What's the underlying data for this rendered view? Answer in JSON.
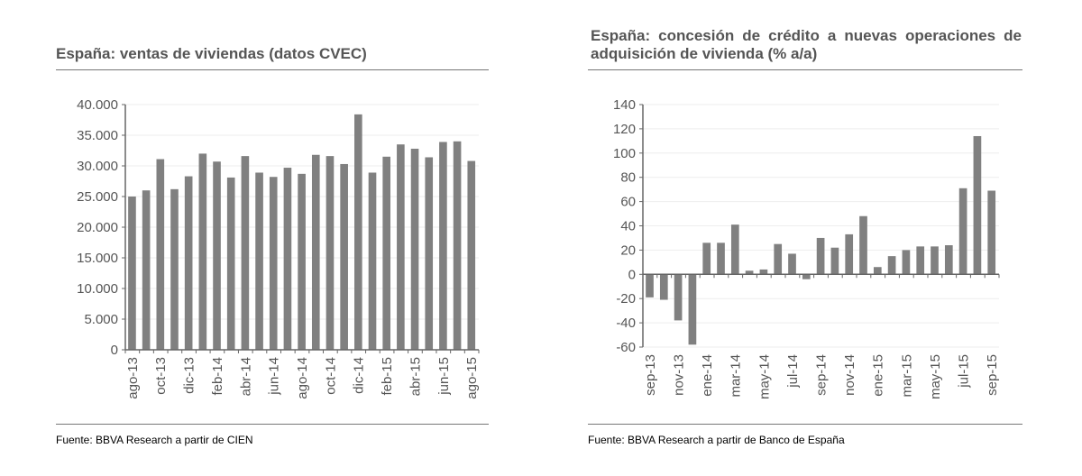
{
  "chart_data": [
    {
      "type": "bar",
      "title": "España: ventas de viviendas (datos CVEC)",
      "source": "Fuente: BBVA Research a partir de CIEN",
      "categories": [
        "ago-13",
        "sep-13",
        "oct-13",
        "nov-13",
        "dic-13",
        "ene-14",
        "feb-14",
        "mar-14",
        "abr-14",
        "may-14",
        "jun-14",
        "jul-14",
        "ago-14",
        "sep-14",
        "oct-14",
        "nov-14",
        "dic-14",
        "ene-15",
        "feb-15",
        "mar-15",
        "abr-15",
        "may-15",
        "jun-15",
        "jul-15",
        "ago-15"
      ],
      "tick_labels": [
        "ago-13",
        "oct-13",
        "dic-13",
        "feb-14",
        "abr-14",
        "jun-14",
        "ago-14",
        "oct-14",
        "dic-14",
        "feb-15",
        "abr-15",
        "jun-15",
        "ago-15"
      ],
      "values": [
        25000,
        26000,
        31100,
        26200,
        28300,
        32000,
        30700,
        28100,
        31600,
        28900,
        28200,
        29700,
        28700,
        31800,
        31600,
        30300,
        38400,
        28900,
        31500,
        33500,
        32800,
        31400,
        33900,
        34000,
        30800
      ],
      "ylim": [
        0,
        40000
      ],
      "yticks": [
        "0",
        "5.000",
        "10.000",
        "15.000",
        "20.000",
        "25.000",
        "30.000",
        "35.000",
        "40.000"
      ],
      "grid": true,
      "color": "#808080"
    },
    {
      "type": "bar",
      "title": "España: concesión de crédito a nuevas operaciones de adquisición de vivienda (% a/a)",
      "source": "Fuente: BBVA Research a partir de Banco de España",
      "categories": [
        "sep-13",
        "oct-13",
        "nov-13",
        "dic-13",
        "ene-14",
        "feb-14",
        "mar-14",
        "abr-14",
        "may-14",
        "jun-14",
        "jul-14",
        "ago-14",
        "sep-14",
        "oct-14",
        "nov-14",
        "dic-14",
        "ene-15",
        "feb-15",
        "mar-15",
        "abr-15",
        "may-15",
        "jun-15",
        "jul-15",
        "ago-15",
        "sep-15"
      ],
      "tick_labels": [
        "sep-13",
        "nov-13",
        "ene-14",
        "mar-14",
        "may-14",
        "jul-14",
        "sep-14",
        "nov-14",
        "ene-15",
        "mar-15",
        "may-15",
        "jul-15",
        "sep-15"
      ],
      "values": [
        -19,
        -21,
        -38,
        -58,
        26,
        26,
        41,
        3,
        4,
        25,
        17,
        -4,
        30,
        22,
        33,
        48,
        6,
        15,
        20,
        23,
        23,
        24,
        71,
        114,
        69
      ],
      "ylim": [
        -60,
        140
      ],
      "yticks": [
        "-60",
        "-40",
        "-20",
        "0",
        "20",
        "40",
        "60",
        "80",
        "100",
        "120",
        "140"
      ],
      "grid": true,
      "color": "#808080"
    }
  ]
}
